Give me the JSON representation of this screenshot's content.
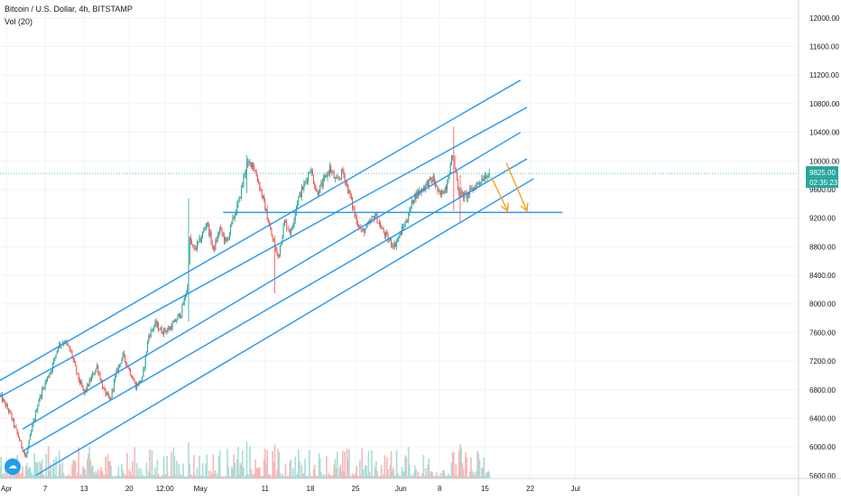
{
  "header": {
    "symbol_line": "Bitcoin / U.S. Dollar, 4h, BITSTAMP",
    "indicator_line": "Vol (20)"
  },
  "colors": {
    "up": "#26a69a",
    "down": "#ef5350",
    "channel": "#2196f3",
    "arrow": "#f7a21b",
    "price_line": "#26a69a",
    "grid": "#f0f3fa",
    "volume_up": "#a8ddd6",
    "volume_down": "#f5b8b7"
  },
  "icons": {
    "logo": "cloud-icon"
  },
  "chart_data": {
    "type": "candlestick",
    "y_axis": {
      "ticks": [
        5600,
        6000,
        6400,
        6800,
        7200,
        7600,
        8000,
        8400,
        8800,
        9200,
        9600,
        10000,
        10400,
        10800,
        11200,
        11600,
        12000
      ],
      "tick_labels": [
        "5600.00",
        "6000.00",
        "6400.00",
        "6800.00",
        "7200.00",
        "7600.00",
        "8000.00",
        "8400.00",
        "8800.00",
        "9200.00",
        "9600.00",
        "10000.00",
        "10400.00",
        "10800.00",
        "11200.00",
        "11600.00",
        "12000.00"
      ],
      "range": [
        5560,
        12250
      ]
    },
    "x_axis": {
      "range_days": [
        -1,
        122.5
      ],
      "ticks": [
        {
          "day": 0,
          "label": "Apr"
        },
        {
          "day": 6,
          "label": "7"
        },
        {
          "day": 12,
          "label": "13"
        },
        {
          "day": 19,
          "label": "20"
        },
        {
          "day": 24.5,
          "label": "12:00"
        },
        {
          "day": 30,
          "label": "May"
        },
        {
          "day": 40,
          "label": "11"
        },
        {
          "day": 47,
          "label": "18"
        },
        {
          "day": 54,
          "label": "25"
        },
        {
          "day": 61,
          "label": "Jun"
        },
        {
          "day": 67,
          "label": "8"
        },
        {
          "day": 74,
          "label": "15"
        },
        {
          "day": 81,
          "label": "22"
        },
        {
          "day": 88,
          "label": "Jul"
        }
      ]
    },
    "price_labels": {
      "last_price": 9825,
      "last_price_label": "9825.00",
      "countdown": "02:35:23"
    },
    "anchors": [
      [
        -1,
        6720
      ],
      [
        0.5,
        6480
      ],
      [
        2,
        6100
      ],
      [
        3,
        5850
      ],
      [
        4,
        6280
      ],
      [
        5,
        6660
      ],
      [
        6,
        6900
      ],
      [
        7,
        7100
      ],
      [
        8,
        7420
      ],
      [
        9,
        7480
      ],
      [
        10,
        7320
      ],
      [
        11,
        6990
      ],
      [
        12,
        6750
      ],
      [
        13,
        6940
      ],
      [
        14,
        7130
      ],
      [
        15,
        6800
      ],
      [
        16,
        6650
      ],
      [
        17,
        7040
      ],
      [
        18,
        7280
      ],
      [
        19,
        7080
      ],
      [
        20,
        6850
      ],
      [
        21,
        6950
      ],
      [
        22,
        7560
      ],
      [
        23,
        7720
      ],
      [
        24,
        7620
      ],
      [
        25,
        7640
      ],
      [
        26,
        7740
      ],
      [
        27,
        7880
      ],
      [
        28,
        8240
      ],
      [
        28.3,
        8900
      ],
      [
        29,
        8750
      ],
      [
        30,
        8900
      ],
      [
        31,
        9150
      ],
      [
        32,
        8750
      ],
      [
        33,
        9050
      ],
      [
        34,
        8850
      ],
      [
        35,
        9170
      ],
      [
        36,
        9450
      ],
      [
        37,
        9920
      ],
      [
        38,
        9980
      ],
      [
        39,
        9700
      ],
      [
        40,
        9350
      ],
      [
        41,
        8950
      ],
      [
        42,
        8650
      ],
      [
        43,
        9150
      ],
      [
        44,
        9000
      ],
      [
        45,
        9450
      ],
      [
        46,
        9650
      ],
      [
        47,
        9900
      ],
      [
        48,
        9550
      ],
      [
        49,
        9700
      ],
      [
        50,
        9900
      ],
      [
        51,
        9700
      ],
      [
        52,
        9850
      ],
      [
        53,
        9550
      ],
      [
        54,
        9200
      ],
      [
        55,
        9000
      ],
      [
        56,
        9100
      ],
      [
        57,
        9250
      ],
      [
        58,
        9050
      ],
      [
        59,
        8900
      ],
      [
        60,
        8820
      ],
      [
        61,
        9000
      ],
      [
        62,
        9200
      ],
      [
        63,
        9500
      ],
      [
        64,
        9580
      ],
      [
        65,
        9680
      ],
      [
        66,
        9750
      ],
      [
        67,
        9500
      ],
      [
        68,
        9650
      ],
      [
        69,
        10100
      ],
      [
        70,
        9550
      ],
      [
        71,
        9500
      ],
      [
        72,
        9600
      ],
      [
        73,
        9700
      ],
      [
        74,
        9800
      ],
      [
        74.7,
        9825
      ]
    ],
    "candles_per_day": 6,
    "wicks": [
      {
        "day": 28.1,
        "high": 9480,
        "low": 7750
      },
      {
        "day": 37.2,
        "high": 10080,
        "low": 9550
      },
      {
        "day": 41.5,
        "high": 8950,
        "low": 8150
      },
      {
        "day": 69.2,
        "high": 10480,
        "low": 9300
      },
      {
        "day": 70.2,
        "high": 9800,
        "low": 9150
      }
    ],
    "volume": {
      "max_height_fraction_of_pane": 1,
      "pane_top_value": 6100,
      "pane_bottom_value": 5600
    },
    "annotations": {
      "channel_lines": [
        {
          "from": [
            -1,
            6930
          ],
          "to": [
            79.5,
            11130
          ]
        },
        {
          "from": [
            -1,
            6700
          ],
          "to": [
            80.5,
            10750
          ]
        },
        {
          "from": [
            2.5,
            6250
          ],
          "to": [
            79.5,
            10400
          ]
        },
        {
          "from": [
            2.5,
            5940
          ],
          "to": [
            80.5,
            10030
          ]
        },
        {
          "from": [
            4.5,
            5600
          ],
          "to": [
            81.5,
            9750
          ]
        }
      ],
      "horizontal_level": {
        "from": 33.5,
        "to": 86,
        "price": 9280
      },
      "arrows": [
        {
          "from": [
            75,
            9770
          ],
          "to": [
            77.5,
            9300
          ]
        },
        {
          "from": [
            77.3,
            9970
          ],
          "to": [
            80.5,
            9300
          ]
        }
      ]
    }
  }
}
